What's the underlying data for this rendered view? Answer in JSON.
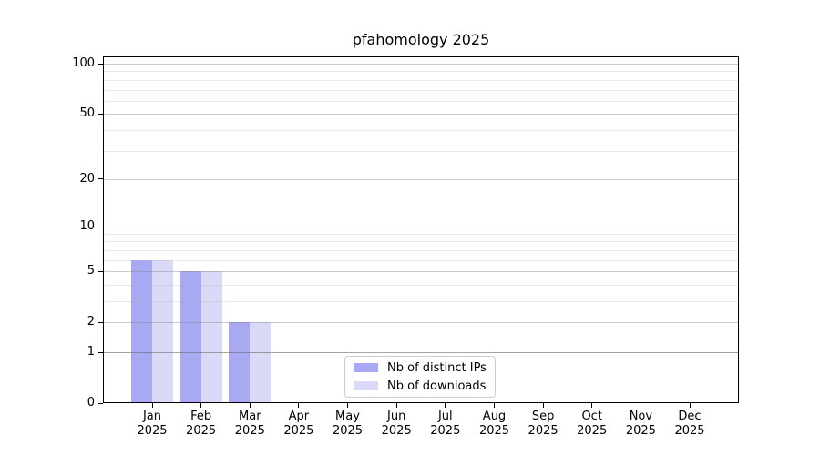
{
  "chart_data": {
    "type": "bar",
    "title": "pfahomology 2025",
    "x_tick_year": "2025",
    "categories": [
      "Jan",
      "Feb",
      "Mar",
      "Apr",
      "May",
      "Jun",
      "Jul",
      "Aug",
      "Sep",
      "Oct",
      "Nov",
      "Dec"
    ],
    "series": [
      {
        "name": "Nb of distinct IPs",
        "color": "#a9a9f3",
        "values": [
          6,
          5,
          2,
          0,
          0,
          0,
          0,
          0,
          0,
          0,
          0,
          0
        ]
      },
      {
        "name": "Nb of downloads",
        "color": "#dadaf8",
        "values": [
          6,
          5,
          2,
          0,
          0,
          0,
          0,
          0,
          0,
          0,
          0,
          0
        ]
      }
    ],
    "y_ticks": [
      0,
      1,
      2,
      5,
      10,
      20,
      50,
      100
    ],
    "y_minor_ticks": [
      3,
      4,
      6,
      7,
      8,
      9,
      30,
      40,
      60,
      70,
      80,
      90
    ],
    "y_scale": "log1p",
    "ylim": [
      0,
      110
    ],
    "grid": "horizontal",
    "legend_position": "bottom-center",
    "colors": {
      "axis": "#000000",
      "grid_major": "#cfcfcf",
      "grid_minor": "#ededed",
      "legend_border": "#cccccc",
      "background": "#ffffff"
    }
  }
}
